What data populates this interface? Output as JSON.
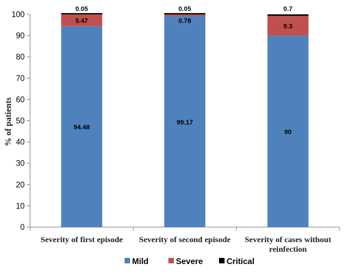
{
  "chart_data": {
    "type": "bar",
    "stacked": true,
    "categories": [
      [
        "Severity of first episode"
      ],
      [
        "Severity of second episode"
      ],
      [
        "Severity of cases without",
        "reinfection"
      ]
    ],
    "series": [
      {
        "name": "Mild",
        "color": "#4F81BD",
        "values": [
          94.48,
          99.17,
          90
        ]
      },
      {
        "name": "Severe",
        "color": "#C0504D",
        "values": [
          5.47,
          0.78,
          9.3
        ]
      },
      {
        "name": "Critical",
        "color": "#000000",
        "values": [
          0.05,
          0.05,
          0.7
        ]
      }
    ],
    "labels": [
      [
        "94.48",
        "5.47",
        "0.05"
      ],
      [
        "99.17",
        "0.78",
        "0.05"
      ],
      [
        "90",
        "9.3",
        "0.7"
      ]
    ],
    "ylabel": "% of patients",
    "ylim": [
      0,
      100
    ],
    "yticks": [
      0,
      10,
      20,
      30,
      40,
      50,
      60,
      70,
      80,
      90,
      100
    ],
    "grid": false,
    "legend_position": "bottom"
  }
}
